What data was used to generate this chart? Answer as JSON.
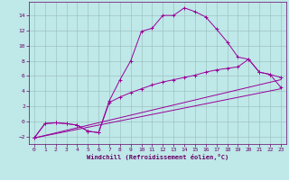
{
  "xlabel": "Windchill (Refroidissement éolien,°C)",
  "bg_color": "#bfe8e8",
  "line_color": "#990099",
  "grid_color": "#99bbbb",
  "axis_color": "#660066",
  "text_color": "#660066",
  "xlim": [
    -0.5,
    23.5
  ],
  "ylim": [
    -3.0,
    15.8
  ],
  "xticks": [
    0,
    1,
    2,
    3,
    4,
    5,
    6,
    7,
    8,
    9,
    10,
    11,
    12,
    13,
    14,
    15,
    16,
    17,
    18,
    19,
    20,
    21,
    22,
    23
  ],
  "yticks": [
    -2,
    0,
    2,
    4,
    6,
    8,
    10,
    12,
    14
  ],
  "curve1_x": [
    0,
    1,
    2,
    3,
    4,
    5,
    6,
    7,
    8,
    9,
    10,
    11,
    12,
    13,
    14,
    15,
    16,
    17,
    18,
    19,
    20,
    21,
    22,
    23
  ],
  "curve1_y": [
    -2.2,
    -0.3,
    -0.2,
    -0.3,
    -0.5,
    -1.3,
    -1.5,
    2.7,
    5.5,
    8.0,
    11.9,
    12.3,
    14.0,
    14.0,
    15.0,
    14.5,
    13.8,
    12.2,
    10.5,
    8.5,
    8.2,
    6.5,
    6.2,
    4.5
  ],
  "curve2_x": [
    0,
    1,
    2,
    3,
    4,
    5,
    6,
    7,
    8,
    9,
    10,
    11,
    12,
    13,
    14,
    15,
    16,
    17,
    18,
    19,
    20,
    21,
    22,
    23
  ],
  "curve2_y": [
    -2.2,
    -0.3,
    -0.2,
    -0.3,
    -0.5,
    -1.3,
    -1.5,
    2.5,
    3.2,
    3.8,
    4.3,
    4.8,
    5.2,
    5.5,
    5.8,
    6.1,
    6.5,
    6.8,
    7.0,
    7.2,
    8.2,
    6.5,
    6.2,
    5.8
  ],
  "line1_x": [
    0,
    23
  ],
  "line1_y": [
    -2.2,
    4.3
  ],
  "line2_x": [
    0,
    23
  ],
  "line2_y": [
    -2.2,
    5.5
  ]
}
